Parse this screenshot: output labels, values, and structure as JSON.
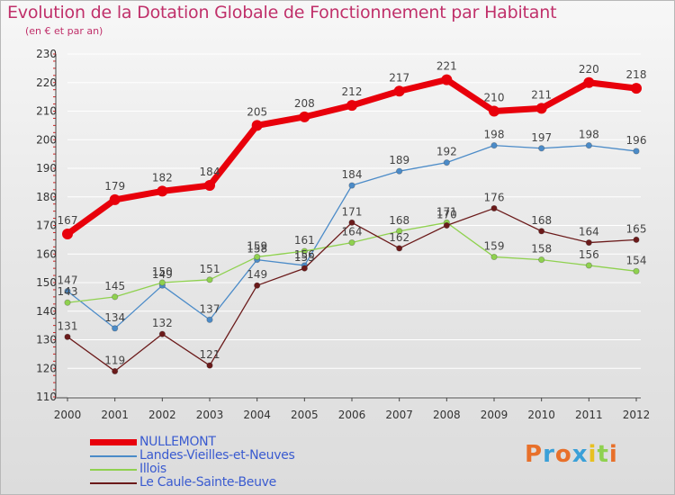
{
  "title": "Evolution de la Dotation Globale de Fonctionnement par Habitant",
  "subtitle": "(en € et par an)",
  "logo": "Proxiti",
  "chart_data": {
    "type": "line",
    "title": "Evolution de la Dotation Globale de Fonctionnement par Habitant",
    "ylabel": "(en € et par an)",
    "xlabel": "",
    "ylim": [
      110,
      230
    ],
    "yticks": [
      110,
      120,
      130,
      140,
      150,
      160,
      170,
      180,
      190,
      200,
      210,
      220,
      230
    ],
    "categories": [
      "2000",
      "2001",
      "2002",
      "2003",
      "2004",
      "2005",
      "2006",
      "2007",
      "2008",
      "2009",
      "2010",
      "2011",
      "2012"
    ],
    "grid": "horizontal",
    "legend": "bottom-left",
    "series": [
      {
        "name": "NULLEMONT",
        "color": "#e8000b",
        "emphasis": true,
        "values": [
          167,
          179,
          182,
          184,
          205,
          208,
          212,
          217,
          221,
          210,
          211,
          220,
          218
        ]
      },
      {
        "name": "Landes-Vieilles-et-Neuves",
        "color": "#4b8bc8",
        "values": [
          147,
          134,
          149,
          137,
          158,
          156,
          184,
          189,
          192,
          198,
          197,
          198,
          196
        ]
      },
      {
        "name": "Illois",
        "color": "#8fd14f",
        "values": [
          143,
          145,
          150,
          151,
          159,
          161,
          164,
          168,
          171,
          159,
          158,
          156,
          154
        ]
      },
      {
        "name": "Le Caule-Sainte-Beuve",
        "color": "#6b1a1a",
        "values": [
          131,
          119,
          132,
          121,
          149,
          155,
          171,
          162,
          170,
          176,
          168,
          164,
          165
        ]
      }
    ]
  }
}
